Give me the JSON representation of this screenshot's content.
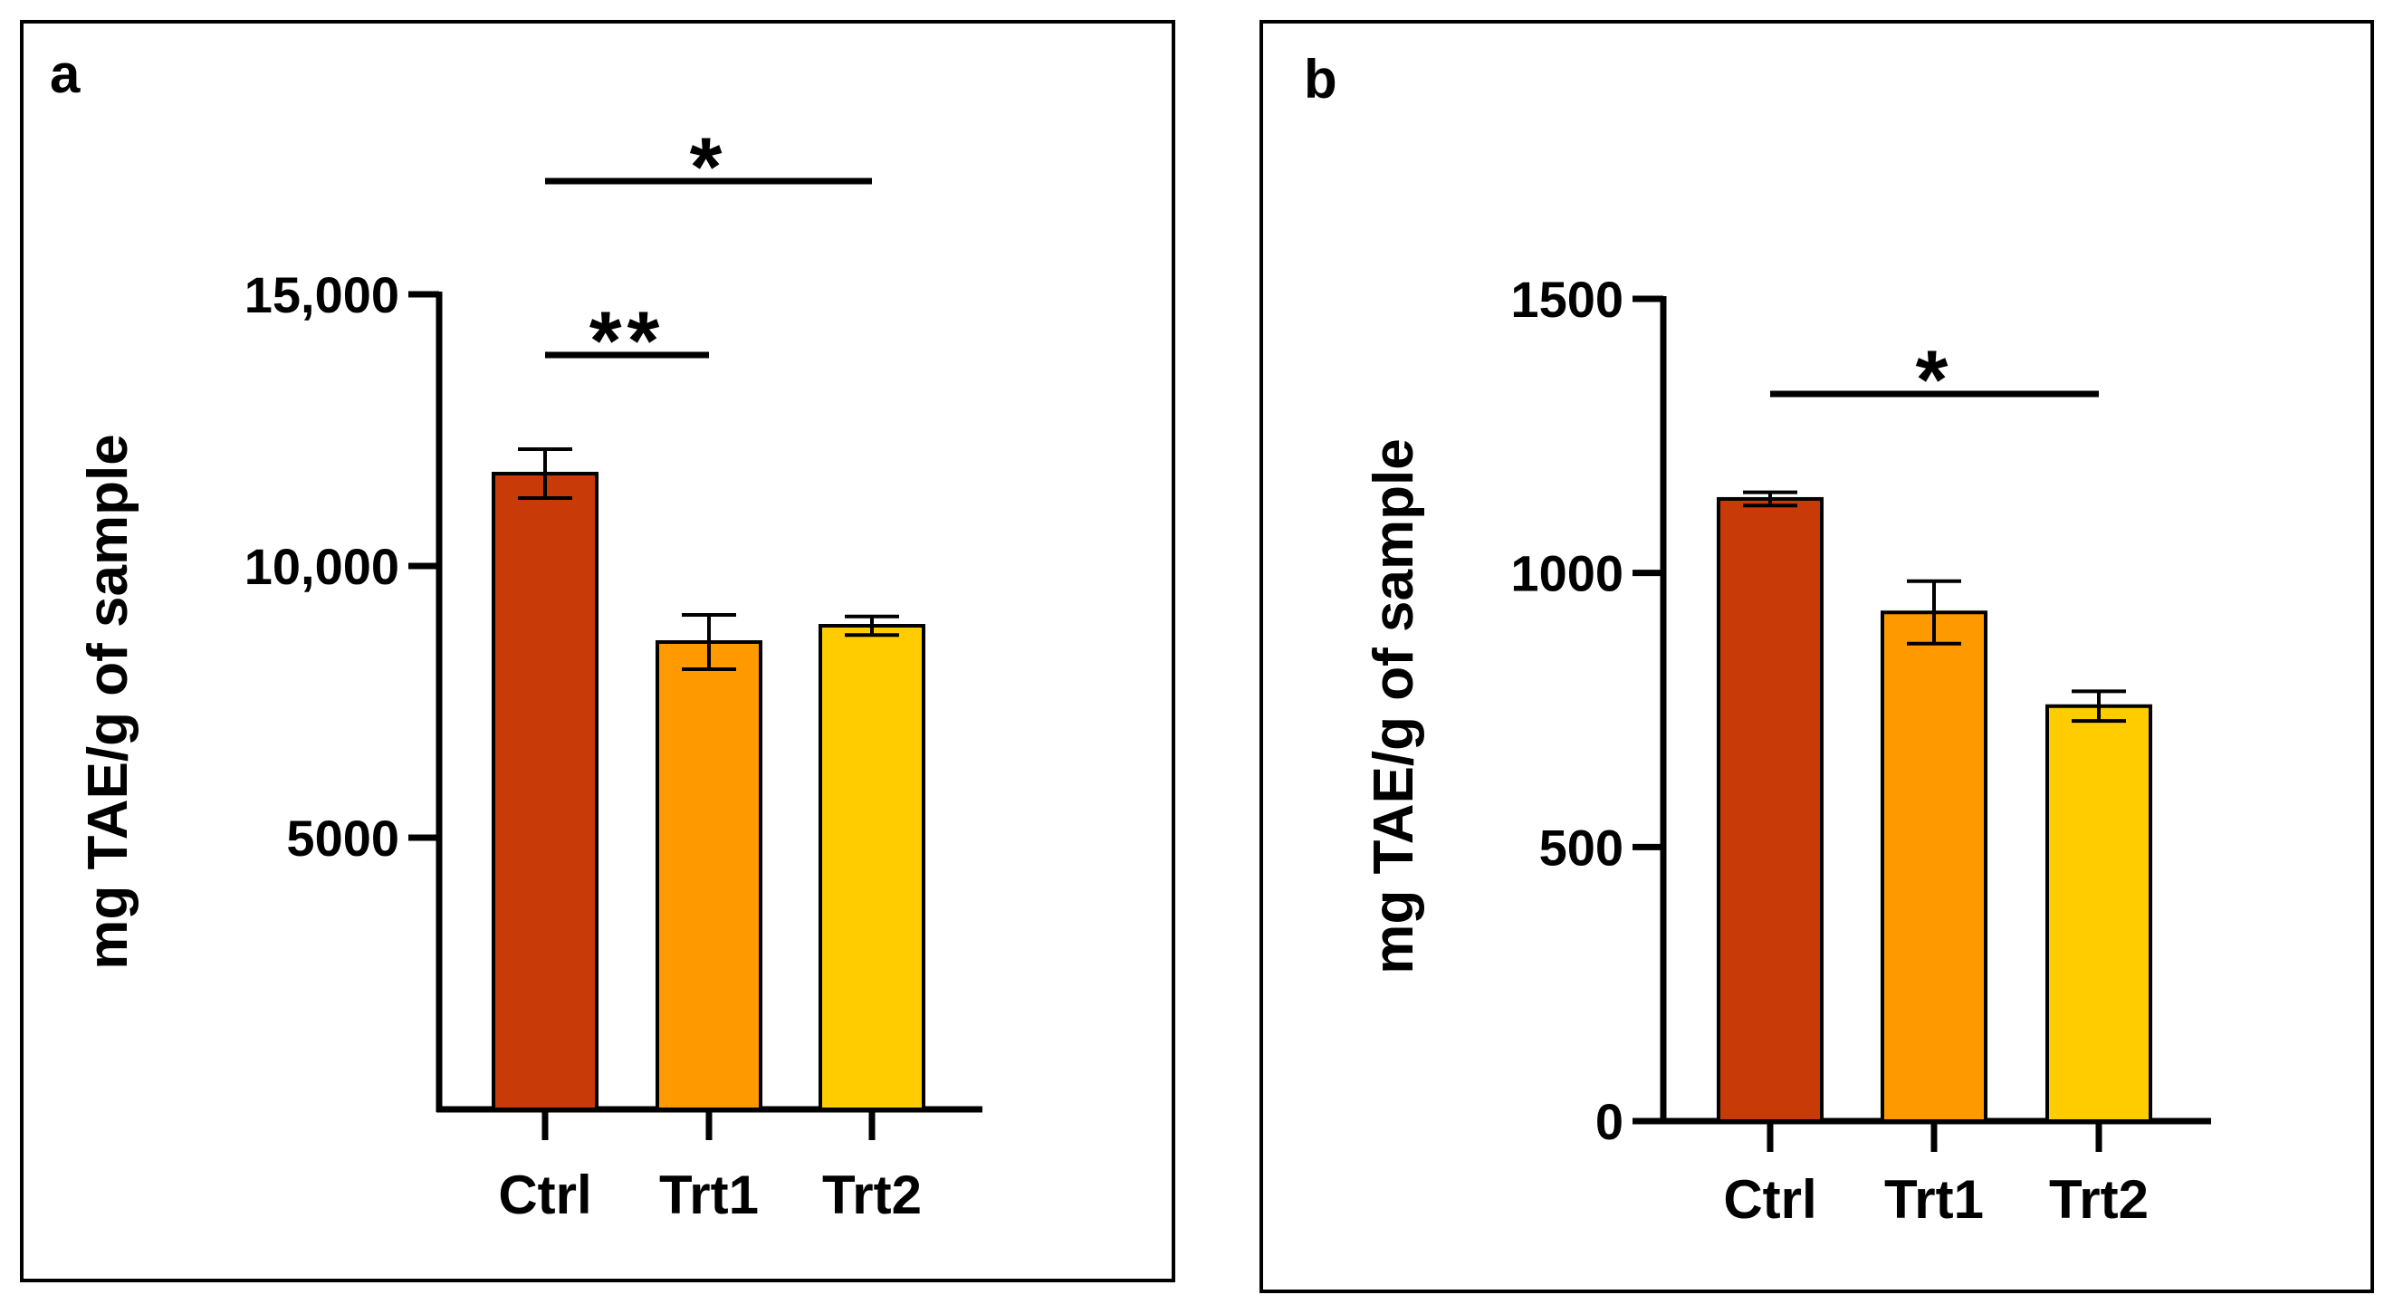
{
  "chart_data": [
    {
      "panel": "a",
      "type": "bar",
      "title": "",
      "ylabel": "mg TAE/g of sample",
      "xlabel": "",
      "categories": [
        "Ctrl",
        "Trt1",
        "Trt2"
      ],
      "values": [
        11700,
        8600,
        8900
      ],
      "errors": [
        450,
        500,
        170
      ],
      "colors": [
        "#C83A07",
        "#FF9900",
        "#FFCC00"
      ],
      "ylim": [
        0,
        15000
      ],
      "yticks": [
        5000,
        10000,
        15000
      ],
      "ytick_labels": [
        "5000",
        "10,000",
        "15,000"
      ],
      "significance": [
        {
          "from": 0,
          "to": 1,
          "label": "**"
        },
        {
          "from": 0,
          "to": 2,
          "label": "*"
        }
      ]
    },
    {
      "panel": "b",
      "type": "bar",
      "title": "",
      "ylabel": "mg TAE/g of sample",
      "xlabel": "",
      "categories": [
        "Ctrl",
        "Trt1",
        "Trt2"
      ],
      "values": [
        1135,
        928,
        757
      ],
      "errors": [
        12,
        57,
        27
      ],
      "colors": [
        "#C83A07",
        "#FF9900",
        "#FFCC00"
      ],
      "ylim": [
        0,
        1500
      ],
      "yticks": [
        0,
        500,
        1000,
        1500
      ],
      "ytick_labels": [
        "0",
        "500",
        "1000",
        "1500"
      ],
      "significance": [
        {
          "from": 0,
          "to": 2,
          "label": "*"
        }
      ]
    }
  ]
}
